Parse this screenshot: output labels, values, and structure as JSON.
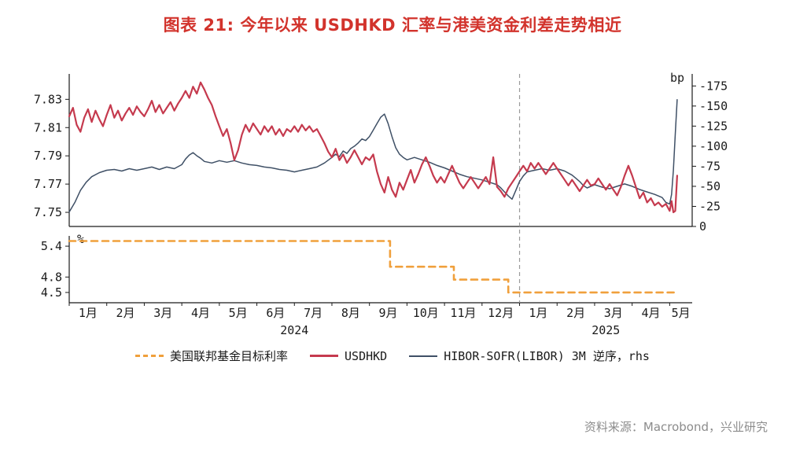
{
  "page": {
    "title": "图表 21: 今年以来 USDHKD 汇率与港美资金利差走势相近",
    "source_note": "资料来源：Macrobond，兴业研究"
  },
  "colors": {
    "title": "#d2332c",
    "usdhkd": "#c53a4e",
    "spread": "#3f5066",
    "fed": "#f0a03c",
    "divider": "#9a9a9a",
    "axis": "#1a1a1a",
    "source": "#8c8c8c"
  },
  "chart_data": {
    "type": "line",
    "title": "图表 21: 今年以来 USDHKD 汇率与港美资金利差走势相近",
    "panels": [
      {
        "name": "top",
        "left_axis": {
          "ticks": [
            7.75,
            7.77,
            7.79,
            7.81,
            7.83
          ],
          "range": [
            7.74,
            7.848
          ]
        },
        "right_axis": {
          "label": "bp",
          "inverted": true,
          "ticks": [
            -175,
            -150,
            -125,
            -100,
            -75,
            -50,
            -25,
            0
          ],
          "range": [
            0,
            -190
          ]
        }
      },
      {
        "name": "bottom",
        "left_axis": {
          "label": "%",
          "ticks": [
            5.4,
            4.8,
            4.5
          ],
          "range": [
            4.3,
            5.6
          ]
        }
      }
    ],
    "x_axis": {
      "range_months": [
        0,
        16.6
      ],
      "divider_x": 12,
      "month_labels": [
        "1月",
        "2月",
        "3月",
        "4月",
        "5月",
        "6月",
        "7月",
        "8月",
        "9月",
        "10月",
        "11月",
        "12月",
        "1月",
        "2月",
        "3月",
        "4月",
        "5月"
      ],
      "year_labels": [
        {
          "label": "2024",
          "span": [
            0,
            12
          ]
        },
        {
          "label": "2025",
          "span": [
            12,
            16.6
          ]
        }
      ]
    },
    "series": [
      {
        "name": "美国联邦基金目标利率",
        "panel": "bottom",
        "axis": "left",
        "style": "dashed",
        "color_key": "fed",
        "points": [
          [
            0,
            5.5
          ],
          [
            8.55,
            5.5
          ],
          [
            8.55,
            5.0
          ],
          [
            10.25,
            5.0
          ],
          [
            10.25,
            4.75
          ],
          [
            11.7,
            4.75
          ],
          [
            11.7,
            4.5
          ],
          [
            16.2,
            4.5
          ]
        ]
      },
      {
        "name": "USDHKD",
        "panel": "top",
        "axis": "left",
        "style": "solid",
        "color_key": "usdhkd",
        "points": [
          [
            0,
            7.818
          ],
          [
            0.1,
            7.824
          ],
          [
            0.2,
            7.812
          ],
          [
            0.3,
            7.807
          ],
          [
            0.4,
            7.817
          ],
          [
            0.5,
            7.823
          ],
          [
            0.6,
            7.814
          ],
          [
            0.7,
            7.822
          ],
          [
            0.8,
            7.816
          ],
          [
            0.9,
            7.811
          ],
          [
            1,
            7.819
          ],
          [
            1.1,
            7.826
          ],
          [
            1.2,
            7.817
          ],
          [
            1.3,
            7.822
          ],
          [
            1.4,
            7.815
          ],
          [
            1.5,
            7.82
          ],
          [
            1.6,
            7.824
          ],
          [
            1.7,
            7.819
          ],
          [
            1.8,
            7.825
          ],
          [
            1.9,
            7.821
          ],
          [
            2,
            7.818
          ],
          [
            2.1,
            7.823
          ],
          [
            2.2,
            7.829
          ],
          [
            2.3,
            7.821
          ],
          [
            2.4,
            7.826
          ],
          [
            2.5,
            7.82
          ],
          [
            2.6,
            7.824
          ],
          [
            2.7,
            7.828
          ],
          [
            2.8,
            7.822
          ],
          [
            2.9,
            7.827
          ],
          [
            3,
            7.831
          ],
          [
            3.1,
            7.836
          ],
          [
            3.2,
            7.831
          ],
          [
            3.3,
            7.839
          ],
          [
            3.4,
            7.834
          ],
          [
            3.5,
            7.842
          ],
          [
            3.6,
            7.837
          ],
          [
            3.7,
            7.831
          ],
          [
            3.8,
            7.826
          ],
          [
            3.9,
            7.818
          ],
          [
            4,
            7.811
          ],
          [
            4.1,
            7.804
          ],
          [
            4.2,
            7.809
          ],
          [
            4.3,
            7.799
          ],
          [
            4.4,
            7.787
          ],
          [
            4.5,
            7.794
          ],
          [
            4.6,
            7.805
          ],
          [
            4.7,
            7.812
          ],
          [
            4.8,
            7.807
          ],
          [
            4.9,
            7.813
          ],
          [
            5,
            7.809
          ],
          [
            5.1,
            7.805
          ],
          [
            5.2,
            7.811
          ],
          [
            5.3,
            7.807
          ],
          [
            5.4,
            7.811
          ],
          [
            5.5,
            7.805
          ],
          [
            5.6,
            7.809
          ],
          [
            5.7,
            7.804
          ],
          [
            5.8,
            7.809
          ],
          [
            5.9,
            7.807
          ],
          [
            6,
            7.811
          ],
          [
            6.1,
            7.807
          ],
          [
            6.2,
            7.812
          ],
          [
            6.3,
            7.808
          ],
          [
            6.4,
            7.811
          ],
          [
            6.5,
            7.807
          ],
          [
            6.6,
            7.809
          ],
          [
            6.7,
            7.804
          ],
          [
            6.8,
            7.799
          ],
          [
            6.9,
            7.793
          ],
          [
            7,
            7.789
          ],
          [
            7.1,
            7.795
          ],
          [
            7.2,
            7.787
          ],
          [
            7.3,
            7.791
          ],
          [
            7.4,
            7.785
          ],
          [
            7.5,
            7.789
          ],
          [
            7.6,
            7.794
          ],
          [
            7.7,
            7.789
          ],
          [
            7.8,
            7.784
          ],
          [
            7.9,
            7.789
          ],
          [
            8,
            7.787
          ],
          [
            8.1,
            7.791
          ],
          [
            8.2,
            7.779
          ],
          [
            8.3,
            7.77
          ],
          [
            8.4,
            7.764
          ],
          [
            8.5,
            7.775
          ],
          [
            8.6,
            7.766
          ],
          [
            8.7,
            7.761
          ],
          [
            8.8,
            7.771
          ],
          [
            8.9,
            7.766
          ],
          [
            9,
            7.773
          ],
          [
            9.1,
            7.78
          ],
          [
            9.2,
            7.771
          ],
          [
            9.3,
            7.777
          ],
          [
            9.4,
            7.784
          ],
          [
            9.5,
            7.789
          ],
          [
            9.6,
            7.783
          ],
          [
            9.7,
            7.776
          ],
          [
            9.8,
            7.771
          ],
          [
            9.9,
            7.775
          ],
          [
            10,
            7.771
          ],
          [
            10.1,
            7.777
          ],
          [
            10.2,
            7.783
          ],
          [
            10.3,
            7.777
          ],
          [
            10.4,
            7.771
          ],
          [
            10.5,
            7.767
          ],
          [
            10.6,
            7.771
          ],
          [
            10.7,
            7.775
          ],
          [
            10.8,
            7.771
          ],
          [
            10.9,
            7.767
          ],
          [
            11,
            7.771
          ],
          [
            11.1,
            7.775
          ],
          [
            11.2,
            7.77
          ],
          [
            11.3,
            7.789
          ],
          [
            11.4,
            7.768
          ],
          [
            11.5,
            7.765
          ],
          [
            11.6,
            7.761
          ],
          [
            11.7,
            7.767
          ],
          [
            11.8,
            7.771
          ],
          [
            11.9,
            7.775
          ],
          [
            12,
            7.779
          ],
          [
            12.1,
            7.783
          ],
          [
            12.2,
            7.779
          ],
          [
            12.3,
            7.785
          ],
          [
            12.4,
            7.781
          ],
          [
            12.5,
            7.785
          ],
          [
            12.6,
            7.781
          ],
          [
            12.7,
            7.777
          ],
          [
            12.8,
            7.781
          ],
          [
            12.9,
            7.785
          ],
          [
            13,
            7.781
          ],
          [
            13.1,
            7.777
          ],
          [
            13.2,
            7.773
          ],
          [
            13.3,
            7.769
          ],
          [
            13.4,
            7.773
          ],
          [
            13.5,
            7.769
          ],
          [
            13.6,
            7.765
          ],
          [
            13.7,
            7.769
          ],
          [
            13.8,
            7.773
          ],
          [
            13.9,
            7.769
          ],
          [
            14,
            7.77
          ],
          [
            14.1,
            7.774
          ],
          [
            14.2,
            7.77
          ],
          [
            14.3,
            7.766
          ],
          [
            14.4,
            7.77
          ],
          [
            14.5,
            7.766
          ],
          [
            14.6,
            7.762
          ],
          [
            14.7,
            7.768
          ],
          [
            14.8,
            7.776
          ],
          [
            14.9,
            7.783
          ],
          [
            15,
            7.776
          ],
          [
            15.1,
            7.768
          ],
          [
            15.2,
            7.76
          ],
          [
            15.3,
            7.764
          ],
          [
            15.4,
            7.757
          ],
          [
            15.5,
            7.76
          ],
          [
            15.6,
            7.755
          ],
          [
            15.7,
            7.757
          ],
          [
            15.8,
            7.754
          ],
          [
            15.9,
            7.756
          ],
          [
            16,
            7.751
          ],
          [
            16.05,
            7.758
          ],
          [
            16.1,
            7.75
          ],
          [
            16.15,
            7.751
          ],
          [
            16.2,
            7.776
          ]
        ]
      },
      {
        "name": "HIBOR-SOFR(LIBOR) 3M 逆序，rhs",
        "panel": "top",
        "axis": "right",
        "style": "solid",
        "color_key": "spread",
        "points": [
          [
            0,
            -18
          ],
          [
            0.15,
            -30
          ],
          [
            0.3,
            -45
          ],
          [
            0.45,
            -55
          ],
          [
            0.6,
            -62
          ],
          [
            0.8,
            -67
          ],
          [
            1,
            -70
          ],
          [
            1.2,
            -71
          ],
          [
            1.4,
            -69
          ],
          [
            1.6,
            -72
          ],
          [
            1.8,
            -70
          ],
          [
            2,
            -72
          ],
          [
            2.2,
            -74
          ],
          [
            2.4,
            -71
          ],
          [
            2.6,
            -74
          ],
          [
            2.8,
            -72
          ],
          [
            3,
            -77
          ],
          [
            3.1,
            -84
          ],
          [
            3.2,
            -89
          ],
          [
            3.3,
            -92
          ],
          [
            3.4,
            -88
          ],
          [
            3.5,
            -85
          ],
          [
            3.6,
            -81
          ],
          [
            3.8,
            -79
          ],
          [
            4,
            -82
          ],
          [
            4.2,
            -80
          ],
          [
            4.4,
            -82
          ],
          [
            4.6,
            -79
          ],
          [
            4.8,
            -77
          ],
          [
            5,
            -76
          ],
          [
            5.2,
            -74
          ],
          [
            5.4,
            -73
          ],
          [
            5.6,
            -71
          ],
          [
            5.8,
            -70
          ],
          [
            6,
            -68
          ],
          [
            6.2,
            -70
          ],
          [
            6.4,
            -72
          ],
          [
            6.6,
            -74
          ],
          [
            6.8,
            -79
          ],
          [
            7,
            -86
          ],
          [
            7.1,
            -90
          ],
          [
            7.2,
            -87
          ],
          [
            7.3,
            -94
          ],
          [
            7.4,
            -91
          ],
          [
            7.5,
            -97
          ],
          [
            7.6,
            -100
          ],
          [
            7.7,
            -104
          ],
          [
            7.8,
            -109
          ],
          [
            7.9,
            -107
          ],
          [
            8,
            -112
          ],
          [
            8.1,
            -120
          ],
          [
            8.2,
            -128
          ],
          [
            8.3,
            -136
          ],
          [
            8.4,
            -140
          ],
          [
            8.5,
            -128
          ],
          [
            8.6,
            -112
          ],
          [
            8.7,
            -98
          ],
          [
            8.8,
            -90
          ],
          [
            8.9,
            -86
          ],
          [
            9,
            -83
          ],
          [
            9.2,
            -86
          ],
          [
            9.4,
            -83
          ],
          [
            9.6,
            -80
          ],
          [
            9.8,
            -76
          ],
          [
            10,
            -73
          ],
          [
            10.2,
            -69
          ],
          [
            10.4,
            -65
          ],
          [
            10.6,
            -62
          ],
          [
            10.8,
            -60
          ],
          [
            11,
            -58
          ],
          [
            11.2,
            -55
          ],
          [
            11.4,
            -52
          ],
          [
            11.5,
            -48
          ],
          [
            11.6,
            -43
          ],
          [
            11.7,
            -38
          ],
          [
            11.8,
            -34
          ],
          [
            11.9,
            -45
          ],
          [
            12,
            -56
          ],
          [
            12.1,
            -63
          ],
          [
            12.2,
            -68
          ],
          [
            12.4,
            -70
          ],
          [
            12.6,
            -72
          ],
          [
            12.8,
            -70
          ],
          [
            13,
            -72
          ],
          [
            13.2,
            -69
          ],
          [
            13.4,
            -64
          ],
          [
            13.5,
            -60
          ],
          [
            13.6,
            -56
          ],
          [
            13.7,
            -51
          ],
          [
            13.8,
            -48
          ],
          [
            14,
            -52
          ],
          [
            14.2,
            -49
          ],
          [
            14.4,
            -47
          ],
          [
            14.6,
            -50
          ],
          [
            14.8,
            -53
          ],
          [
            15,
            -50
          ],
          [
            15.2,
            -46
          ],
          [
            15.4,
            -43
          ],
          [
            15.6,
            -40
          ],
          [
            15.8,
            -36
          ],
          [
            15.9,
            -30
          ],
          [
            16,
            -28
          ],
          [
            16.05,
            -40
          ],
          [
            16.1,
            -70
          ],
          [
            16.15,
            -115
          ],
          [
            16.2,
            -158
          ]
        ]
      }
    ]
  }
}
